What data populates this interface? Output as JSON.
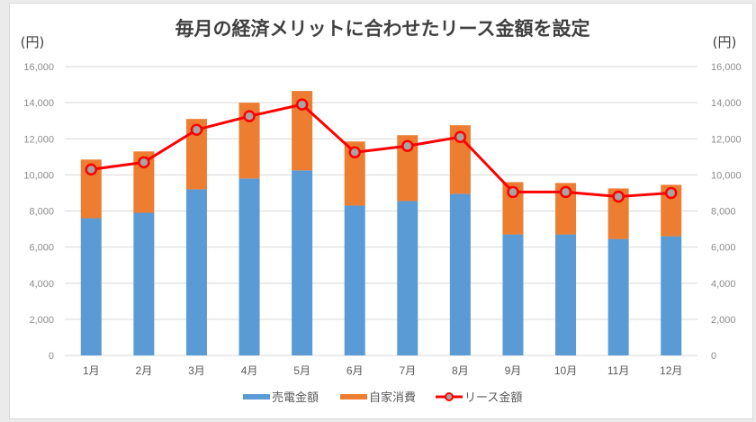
{
  "chart_data": {
    "type": "bar",
    "stacked": true,
    "title": "毎月の経済メリットに合わせたリース金額を設定",
    "ylabel_left": "(円)",
    "ylabel_right": "(円)",
    "xlabel": "",
    "categories": [
      "1月",
      "2月",
      "3月",
      "4月",
      "5月",
      "6月",
      "7月",
      "8月",
      "9月",
      "10月",
      "11月",
      "12月"
    ],
    "ylim": [
      0,
      16000
    ],
    "yticks": [
      0,
      2000,
      4000,
      6000,
      8000,
      10000,
      12000,
      14000,
      16000
    ],
    "ytick_labels": [
      "0",
      "2,000",
      "4,000",
      "6,000",
      "8,000",
      "10,000",
      "12,000",
      "14,000",
      "16,000"
    ],
    "grid": true,
    "legend_position": "bottom",
    "series": [
      {
        "name": "売電金額",
        "type": "bar",
        "color": "#5B9BD5",
        "values": [
          7600,
          7900,
          9200,
          9800,
          10250,
          8300,
          8550,
          8950,
          6700,
          6700,
          6450,
          6600
        ]
      },
      {
        "name": "自家消費",
        "type": "bar",
        "color": "#ED7D31",
        "values": [
          3250,
          3400,
          3900,
          4200,
          4400,
          3550,
          3650,
          3800,
          2900,
          2850,
          2800,
          2850
        ]
      },
      {
        "name": "リース金額",
        "type": "line",
        "color": "#FF0000",
        "marker_fill": "#A5A5A5",
        "values": [
          10300,
          10700,
          12500,
          13250,
          13900,
          11250,
          11600,
          12100,
          9050,
          9050,
          8800,
          9000
        ]
      }
    ]
  }
}
